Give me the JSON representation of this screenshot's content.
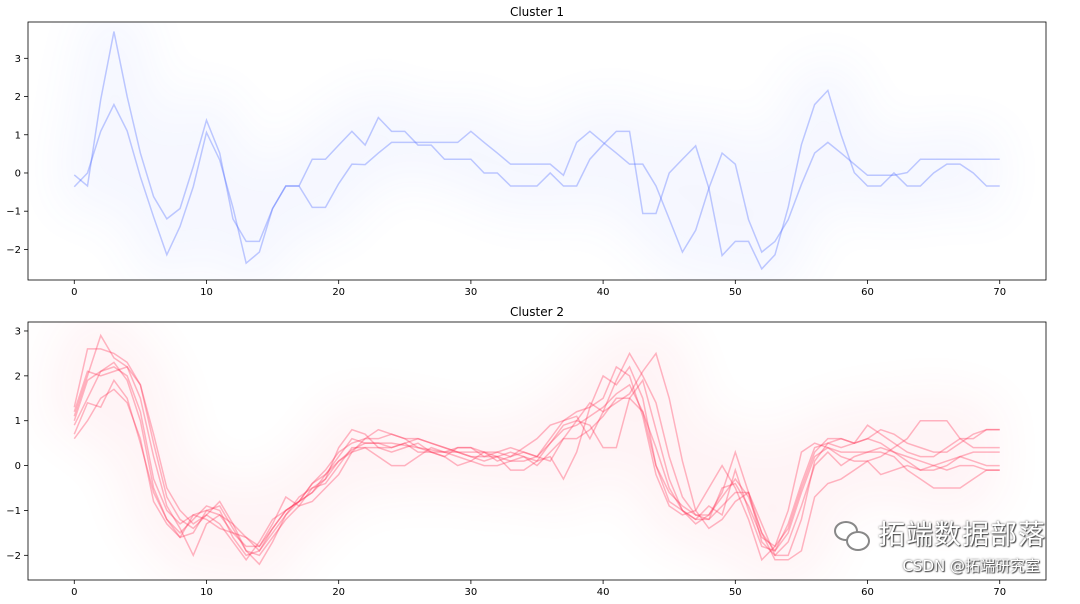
{
  "chart_data": [
    {
      "type": "line",
      "title": "Cluster 1",
      "xlabel": "",
      "ylabel": "",
      "xlim": [
        -3.5,
        73.5
      ],
      "ylim": [
        -2.8,
        3.95
      ],
      "xticks": [
        0,
        10,
        20,
        30,
        40,
        50,
        60,
        70
      ],
      "yticks": [
        -2,
        -1,
        0,
        1,
        2,
        3
      ],
      "grid": false,
      "color": "#4d6bfe",
      "series": [
        {
          "name": "series-1",
          "values": [
            -0.05,
            -0.34,
            1.92,
            3.7,
            2.0,
            0.52,
            -0.62,
            -1.2,
            -0.93,
            0.17,
            1.38,
            0.52,
            -1.2,
            -1.79,
            -1.79,
            -0.93,
            -0.34,
            -0.34,
            0.36,
            0.36,
            0.73,
            1.09,
            0.73,
            1.45,
            1.09,
            1.09,
            0.73,
            0.73,
            0.36,
            0.36,
            0.36,
            0.0,
            0.0,
            -0.34,
            -0.34,
            -0.34,
            0.0,
            -0.34,
            -0.34,
            0.36,
            0.74,
            1.09,
            1.09,
            -1.06,
            -1.06,
            0.0,
            0.36,
            0.71,
            -0.4,
            -2.16,
            -1.79,
            -1.79,
            -2.51,
            -2.14,
            -0.9,
            0.74,
            1.79,
            2.16,
            1.0,
            0.01,
            -0.34,
            -0.34,
            0.0,
            -0.34,
            -0.34,
            0.0,
            0.23,
            0.23,
            0.0,
            -0.34,
            -0.34
          ]
        },
        {
          "name": "series-2",
          "values": [
            -0.36,
            0.0,
            1.09,
            1.79,
            1.1,
            -0.1,
            -1.15,
            -2.14,
            -1.4,
            -0.36,
            1.06,
            0.34,
            -0.9,
            -2.36,
            -2.07,
            -0.93,
            -0.34,
            -0.34,
            -0.9,
            -0.9,
            -0.28,
            0.23,
            0.22,
            0.52,
            0.8,
            0.8,
            0.8,
            0.8,
            0.8,
            0.8,
            1.09,
            0.8,
            0.52,
            0.23,
            0.23,
            0.23,
            0.23,
            -0.06,
            0.8,
            1.09,
            0.8,
            0.52,
            0.23,
            0.23,
            -0.34,
            -1.2,
            -2.07,
            -1.5,
            -0.4,
            0.52,
            0.23,
            -1.22,
            -2.07,
            -1.79,
            -1.22,
            -0.3,
            0.52,
            0.8,
            0.52,
            0.23,
            -0.06,
            -0.06,
            -0.06,
            0.01,
            0.36,
            0.36,
            0.36,
            0.36,
            0.36,
            0.36,
            0.36
          ]
        }
      ]
    },
    {
      "type": "line",
      "title": "Cluster 2",
      "xlabel": "",
      "ylabel": "",
      "xlim": [
        -3.5,
        73.5
      ],
      "ylim": [
        -2.55,
        3.2
      ],
      "xticks": [
        0,
        10,
        20,
        30,
        40,
        50,
        60,
        70
      ],
      "yticks": [
        -2,
        -1,
        0,
        1,
        2,
        3
      ],
      "grid": false,
      "color": "#ff3355",
      "series": [
        {
          "name": "series-1",
          "values": [
            1.0,
            1.9,
            2.1,
            2.2,
            2.0,
            1.2,
            -0.3,
            -1.0,
            -1.3,
            -1.1,
            -1.0,
            -1.1,
            -1.5,
            -1.8,
            -1.8,
            -1.4,
            -1.0,
            -0.8,
            -0.6,
            -0.3,
            0.1,
            0.35,
            0.5,
            0.5,
            0.5,
            0.45,
            0.4,
            0.35,
            0.3,
            0.3,
            0.2,
            0.2,
            0.2,
            0.1,
            0.1,
            0.2,
            0.5,
            0.8,
            0.9,
            1.1,
            1.3,
            1.6,
            1.8,
            1.2,
            0.0,
            -0.6,
            -0.9,
            -1.1,
            -1.1,
            -0.7,
            -0.3,
            -0.7,
            -1.5,
            -1.9,
            -1.5,
            -0.6,
            0.2,
            0.4,
            0.3,
            0.3,
            0.3,
            0.4,
            0.3,
            0.2,
            0.1,
            0.0,
            0.1,
            0.2,
            0.3,
            0.3,
            0.3
          ]
        },
        {
          "name": "series-2",
          "values": [
            1.3,
            2.6,
            2.6,
            2.5,
            2.3,
            1.8,
            0.5,
            -0.7,
            -1.2,
            -1.4,
            -1.1,
            -0.8,
            -1.3,
            -1.9,
            -2.0,
            -1.6,
            -1.2,
            -0.9,
            -0.8,
            -0.5,
            -0.2,
            0.3,
            0.6,
            0.8,
            0.7,
            0.6,
            0.6,
            0.5,
            0.4,
            0.3,
            0.3,
            0.3,
            0.1,
            0.2,
            0.3,
            0.2,
            0.1,
            0.6,
            1.0,
            1.4,
            1.2,
            1.9,
            2.5,
            2.0,
            1.4,
            0.2,
            -0.7,
            -1.1,
            -1.2,
            -0.9,
            -0.6,
            -0.6,
            -1.3,
            -2.0,
            -2.0,
            -1.2,
            0.1,
            0.5,
            0.6,
            0.5,
            0.6,
            0.8,
            0.7,
            0.5,
            0.4,
            0.3,
            0.3,
            0.5,
            0.7,
            0.8,
            0.8
          ]
        },
        {
          "name": "series-3",
          "values": [
            0.7,
            1.4,
            1.3,
            1.9,
            1.5,
            0.5,
            -0.6,
            -1.2,
            -1.6,
            -1.5,
            -1.0,
            -0.9,
            -1.4,
            -1.9,
            -2.2,
            -1.7,
            -1.1,
            -0.7,
            -0.5,
            -0.4,
            0.0,
            0.4,
            0.4,
            0.2,
            0.0,
            0.0,
            0.2,
            0.4,
            0.3,
            0.2,
            0.1,
            0.3,
            0.2,
            -0.1,
            -0.1,
            0.1,
            0.5,
            0.9,
            1.0,
            0.9,
            0.4,
            0.4,
            1.5,
            1.9,
            0.8,
            -0.3,
            -1.0,
            -1.3,
            -1.1,
            -0.6,
            0.3,
            -0.6,
            -1.7,
            -2.0,
            -1.7,
            -0.9,
            0.0,
            0.3,
            0.0,
            0.2,
            0.3,
            0.3,
            0.2,
            -0.1,
            -0.3,
            -0.5,
            -0.5,
            -0.5,
            -0.3,
            -0.1,
            -0.1
          ]
        },
        {
          "name": "series-4",
          "values": [
            1.1,
            2.0,
            2.9,
            2.4,
            2.2,
            1.5,
            0.2,
            -0.9,
            -1.4,
            -2.0,
            -1.3,
            -1.1,
            -1.3,
            -1.6,
            -1.8,
            -1.3,
            -0.7,
            -0.9,
            -0.5,
            -0.3,
            0.4,
            0.8,
            0.7,
            0.4,
            0.3,
            0.4,
            0.5,
            0.3,
            0.2,
            0.4,
            0.4,
            0.2,
            0.3,
            0.2,
            0.4,
            0.6,
            0.9,
            1.0,
            1.2,
            1.3,
            2.0,
            1.8,
            2.2,
            1.5,
            0.0,
            -0.8,
            -1.0,
            -1.2,
            -0.9,
            -1.1,
            -0.1,
            -1.0,
            -1.8,
            -1.9,
            -1.3,
            -0.4,
            0.4,
            0.5,
            0.4,
            0.5,
            0.9,
            0.7,
            0.5,
            0.3,
            0.2,
            0.2,
            0.4,
            0.6,
            0.4,
            0.4,
            0.4
          ]
        },
        {
          "name": "series-5",
          "values": [
            0.9,
            1.5,
            2.1,
            2.3,
            1.9,
            1.0,
            -0.5,
            -1.2,
            -1.5,
            -1.2,
            -0.9,
            -1.0,
            -1.6,
            -2.0,
            -1.9,
            -1.5,
            -1.1,
            -0.8,
            -0.6,
            -0.2,
            0.2,
            0.6,
            0.5,
            0.5,
            0.4,
            0.5,
            0.3,
            0.3,
            0.2,
            0.0,
            0.1,
            0.0,
            0.0,
            0.1,
            0.2,
            0.1,
            0.2,
            -0.3,
            0.3,
            1.3,
            1.5,
            2.2,
            2.0,
            1.1,
            -0.2,
            -0.9,
            -1.1,
            -1.0,
            -0.5,
            0.0,
            -0.5,
            -1.2,
            -2.1,
            -1.8,
            -1.0,
            0.3,
            0.5,
            0.4,
            0.2,
            0.1,
            0.1,
            -0.2,
            -0.1,
            0.0,
            -0.1,
            0.0,
            -0.1,
            0.0,
            0.0,
            -0.1,
            -0.1
          ]
        },
        {
          "name": "series-6",
          "values": [
            1.2,
            2.1,
            2.0,
            2.1,
            2.2,
            1.8,
            0.7,
            -0.5,
            -1.0,
            -1.3,
            -1.1,
            -1.3,
            -1.7,
            -2.1,
            -1.7,
            -1.2,
            -1.0,
            -0.8,
            -0.4,
            -0.1,
            0.3,
            0.5,
            0.6,
            0.6,
            0.7,
            0.6,
            0.4,
            0.3,
            0.3,
            0.4,
            0.4,
            0.3,
            0.3,
            0.4,
            0.3,
            0.2,
            0.6,
            1.0,
            1.1,
            0.6,
            1.2,
            1.4,
            1.6,
            2.1,
            2.5,
            1.5,
            0.1,
            -1.0,
            -1.4,
            -1.2,
            -0.8,
            -0.6,
            -1.5,
            -2.1,
            -2.1,
            -1.9,
            -0.7,
            -0.4,
            -0.3,
            -0.1,
            0.1,
            0.2,
            0.4,
            0.6,
            1.0,
            1.0,
            1.0,
            0.6,
            0.6,
            0.8,
            0.8
          ]
        },
        {
          "name": "series-7",
          "values": [
            0.6,
            1.0,
            1.5,
            1.7,
            1.4,
            0.6,
            -0.8,
            -1.3,
            -1.6,
            -1.1,
            -1.2,
            -1.4,
            -1.5,
            -1.6,
            -1.9,
            -1.4,
            -1.0,
            -0.8,
            -0.4,
            -0.2,
            0.1,
            0.3,
            0.4,
            0.4,
            0.4,
            0.5,
            0.6,
            0.5,
            0.4,
            0.3,
            0.2,
            0.1,
            0.2,
            0.3,
            0.2,
            0.0,
            0.3,
            0.6,
            0.6,
            0.8,
            1.1,
            1.5,
            1.5,
            1.2,
            0.4,
            -0.5,
            -1.0,
            -1.2,
            -1.2,
            -0.5,
            -0.4,
            -0.9,
            -1.6,
            -1.8,
            -1.4,
            -0.5,
            0.3,
            0.6,
            0.6,
            0.5,
            0.6,
            0.5,
            0.3,
            0.1,
            -0.1,
            -0.1,
            0.0,
            0.2,
            0.1,
            0.0,
            0.0
          ]
        }
      ]
    }
  ],
  "watermark": {
    "brand": "拓端数据部落",
    "credit": "CSDN @拓端研究室"
  }
}
